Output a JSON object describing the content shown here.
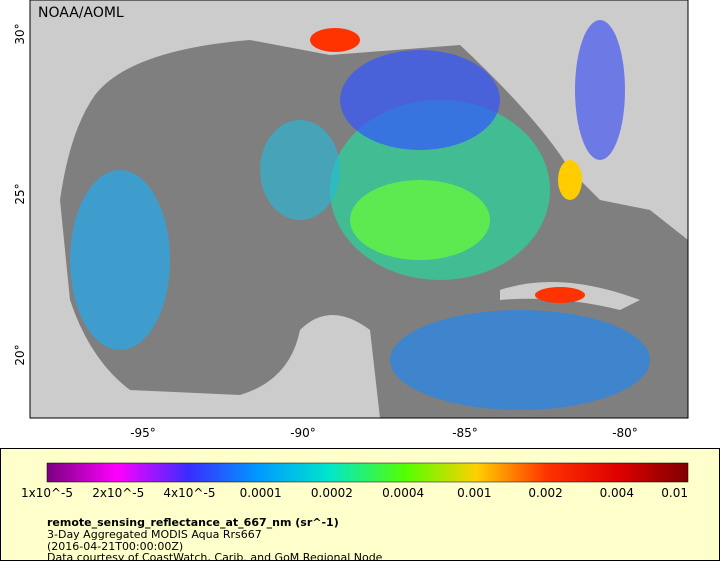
{
  "map": {
    "source": "NOAA/AOML",
    "lat_labels": [
      "30°",
      "25°",
      "20°"
    ],
    "lon_labels": [
      "-95°",
      "-90°",
      "-85°",
      "-80°"
    ]
  },
  "legend": {
    "colorbar_labels": [
      "1x10^-5",
      "2x10^-5",
      "4x10^-5",
      "0.0001",
      "0.0002",
      "0.0004",
      "0.001",
      "0.002",
      "0.004",
      "0.01"
    ],
    "variable": "remote_sensing_reflectance_at_667_nm (sr^-1)",
    "description": "3-Day Aggregated MODIS Aqua Rrs667",
    "time": "(2016-04-21T00:00:00Z)",
    "credit": "Data courtesy of CoastWatch, Carib. and GoM Regional Node"
  }
}
